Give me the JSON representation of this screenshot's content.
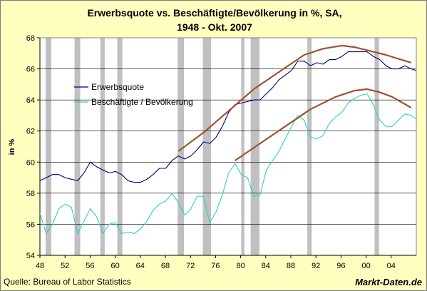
{
  "chart_data": {
    "type": "line",
    "title": "Erwerbsquote vs. Beschäftigte/Bevölkerung in %, SA,",
    "subtitle": "1948 - Okt. 2007",
    "xlabel": "",
    "ylabel": "in %",
    "xlim": [
      1948,
      2007.83
    ],
    "ylim": [
      54,
      68
    ],
    "x_ticks": [
      "48",
      "52",
      "56",
      "60",
      "64",
      "68",
      "72",
      "76",
      "80",
      "84",
      "88",
      "92",
      "96",
      "00",
      "04"
    ],
    "y_ticks": [
      "54",
      "56",
      "58",
      "60",
      "62",
      "64",
      "66",
      "68"
    ],
    "grid": "horizontal",
    "legend_position": "top-left",
    "recession_color": "#c0c0c0",
    "recessions": [
      [
        1948.9,
        1949.8
      ],
      [
        1953.5,
        1954.4
      ],
      [
        1957.6,
        1958.3
      ],
      [
        1960.3,
        1961.1
      ],
      [
        1969.9,
        1970.9
      ],
      [
        1973.9,
        1975.2
      ],
      [
        1980.0,
        1980.5
      ],
      [
        1981.5,
        1982.9
      ],
      [
        1990.5,
        1991.2
      ],
      [
        2001.2,
        2001.9
      ]
    ],
    "series": [
      {
        "name": "Erwerbsquote",
        "color": "#000080",
        "x": [
          1948,
          1949,
          1950,
          1951,
          1952,
          1953,
          1954,
          1955,
          1956,
          1957,
          1958,
          1959,
          1960,
          1961,
          1962,
          1963,
          1964,
          1965,
          1966,
          1967,
          1968,
          1969,
          1970,
          1971,
          1972,
          1973,
          1974,
          1975,
          1976,
          1977,
          1978,
          1979,
          1980,
          1981,
          1982,
          1983,
          1984,
          1985,
          1986,
          1987,
          1988,
          1989,
          1990,
          1991,
          1992,
          1993,
          1994,
          1995,
          1996,
          1997,
          1998,
          1999,
          2000,
          2001,
          2002,
          2003,
          2004,
          2005,
          2006,
          2007,
          2007.75
        ],
        "values": [
          58.8,
          59.0,
          59.2,
          59.2,
          59.0,
          58.9,
          58.8,
          59.3,
          60.0,
          59.7,
          59.5,
          59.3,
          59.4,
          59.2,
          58.8,
          58.7,
          58.7,
          58.9,
          59.2,
          59.6,
          59.6,
          60.1,
          60.4,
          60.2,
          60.4,
          60.8,
          61.3,
          61.2,
          61.6,
          62.3,
          63.2,
          63.7,
          63.8,
          63.9,
          64.0,
          64.0,
          64.4,
          64.8,
          65.3,
          65.6,
          65.9,
          66.5,
          66.5,
          66.2,
          66.4,
          66.3,
          66.6,
          66.6,
          66.8,
          67.1,
          67.1,
          67.1,
          67.1,
          66.8,
          66.6,
          66.2,
          66.0,
          66.0,
          66.2,
          66.0,
          65.9
        ]
      },
      {
        "name": "Beschäftigte / Bevölkerung",
        "color": "#33cccc",
        "x": [
          1948,
          1949,
          1950,
          1951,
          1952,
          1953,
          1954,
          1955,
          1956,
          1957,
          1958,
          1959,
          1960,
          1961,
          1962,
          1963,
          1964,
          1965,
          1966,
          1967,
          1968,
          1969,
          1970,
          1971,
          1972,
          1973,
          1974,
          1975,
          1976,
          1977,
          1978,
          1979,
          1980,
          1981,
          1982,
          1983,
          1984,
          1985,
          1986,
          1987,
          1988,
          1989,
          1990,
          1991,
          1992,
          1993,
          1994,
          1995,
          1996,
          1997,
          1998,
          1999,
          2000,
          2001,
          2002,
          2003,
          2004,
          2005,
          2006,
          2007,
          2007.75
        ],
        "values": [
          56.7,
          55.4,
          56.0,
          57.0,
          57.3,
          57.1,
          55.4,
          56.2,
          57.0,
          56.5,
          55.4,
          56.0,
          56.1,
          55.4,
          55.5,
          55.4,
          55.7,
          56.2,
          56.9,
          57.3,
          57.5,
          58.0,
          57.4,
          56.6,
          57.0,
          57.8,
          57.8,
          56.1,
          56.8,
          57.9,
          59.3,
          59.9,
          59.2,
          59.0,
          57.8,
          57.9,
          59.5,
          60.1,
          60.7,
          61.5,
          62.3,
          63.0,
          62.7,
          61.6,
          61.5,
          61.7,
          62.5,
          62.9,
          63.2,
          63.8,
          64.1,
          64.3,
          64.4,
          63.7,
          62.7,
          62.3,
          62.3,
          62.7,
          63.1,
          63.0,
          62.8
        ]
      },
      {
        "color": "#a0522d",
        "x": [
          1970.0,
          1974.0,
          1978.0,
          1982.0,
          1986.0,
          1990.0,
          1993.0,
          1996.0,
          1998.0,
          2000.0,
          2003.0,
          2007.0
        ],
        "values": [
          60.7,
          61.9,
          63.3,
          64.7,
          65.8,
          66.9,
          67.3,
          67.5,
          67.4,
          67.2,
          66.9,
          66.4
        ]
      },
      {
        "color": "#a0522d",
        "x": [
          1979.0,
          1983.0,
          1987.0,
          1991.0,
          1995.0,
          1998.0,
          2000.0,
          2002.0,
          2004.0,
          2007.0
        ],
        "values": [
          60.1,
          61.2,
          62.3,
          63.4,
          64.2,
          64.6,
          64.7,
          64.5,
          64.2,
          63.5
        ]
      }
    ]
  },
  "footer": {
    "source": "Quelle: Bureau of Labor Statistics",
    "brand": "Markt-Daten.de"
  }
}
